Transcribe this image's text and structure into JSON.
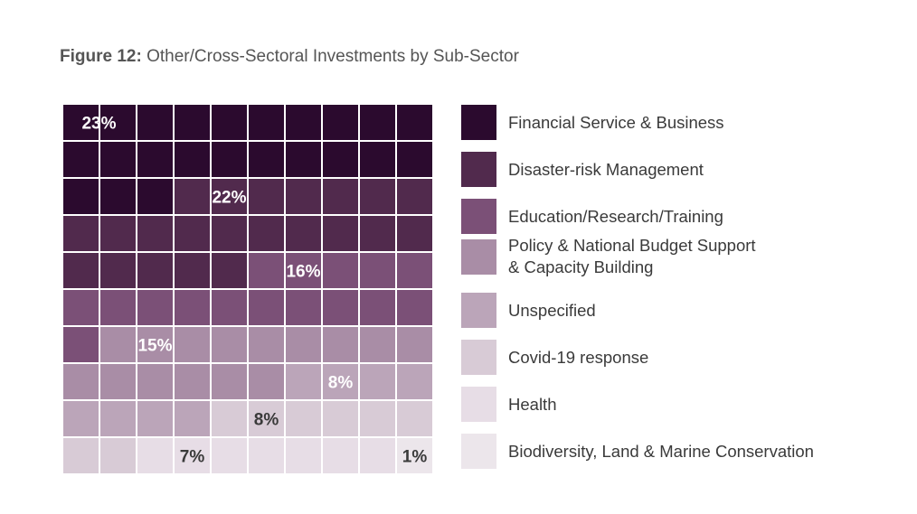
{
  "figure": {
    "number": "Figure 12:",
    "title": "Other/Cross-Sectoral Investments by Sub-Sector"
  },
  "chart_data": {
    "type": "waffle",
    "grid": [
      10,
      10
    ],
    "fill_order": "row-major from top-left",
    "categories": [
      {
        "name": "Financial Service & Business",
        "name_lines": [
          "Financial Service & Business"
        ],
        "value": 23,
        "label": "23%",
        "color": "#2b0a2e",
        "label_color": "#ffffff"
      },
      {
        "name": "Disaster-risk Management",
        "name_lines": [
          "Disaster-risk Management"
        ],
        "value": 22,
        "label": "22%",
        "color": "#512a4d",
        "label_color": "#ffffff"
      },
      {
        "name": "Education/Research/Training",
        "name_lines": [
          "Education/Research/Training"
        ],
        "value": 16,
        "label": "16%",
        "color": "#7b5077",
        "label_color": "#ffffff"
      },
      {
        "name": "Policy & National Budget Support & Capacity Building",
        "name_lines": [
          "Policy & National Budget Support",
          "& Capacity Building"
        ],
        "value": 15,
        "label": "15%",
        "color": "#a98da6",
        "label_color": "#ffffff"
      },
      {
        "name": "Unspecified",
        "name_lines": [
          "Unspecified"
        ],
        "value": 8,
        "label": "8%",
        "color": "#bba5b9",
        "label_color": "#ffffff"
      },
      {
        "name": "Covid-19 response",
        "name_lines": [
          "Covid-19 response"
        ],
        "value": 8,
        "label": "8%",
        "color": "#d8cbd6",
        "label_color": "#3a3a3a"
      },
      {
        "name": "Health",
        "name_lines": [
          "Health"
        ],
        "value": 7,
        "label": "7%",
        "color": "#e7dde6",
        "label_color": "#3a3a3a"
      },
      {
        "name": "Biodiversity, Land & Marine Conservation",
        "name_lines": [
          "Biodiversity, Land & Marine Conservation"
        ],
        "value": 1,
        "label": "1%",
        "color": "#ece6eb",
        "label_color": "#3a3a3a"
      }
    ]
  }
}
